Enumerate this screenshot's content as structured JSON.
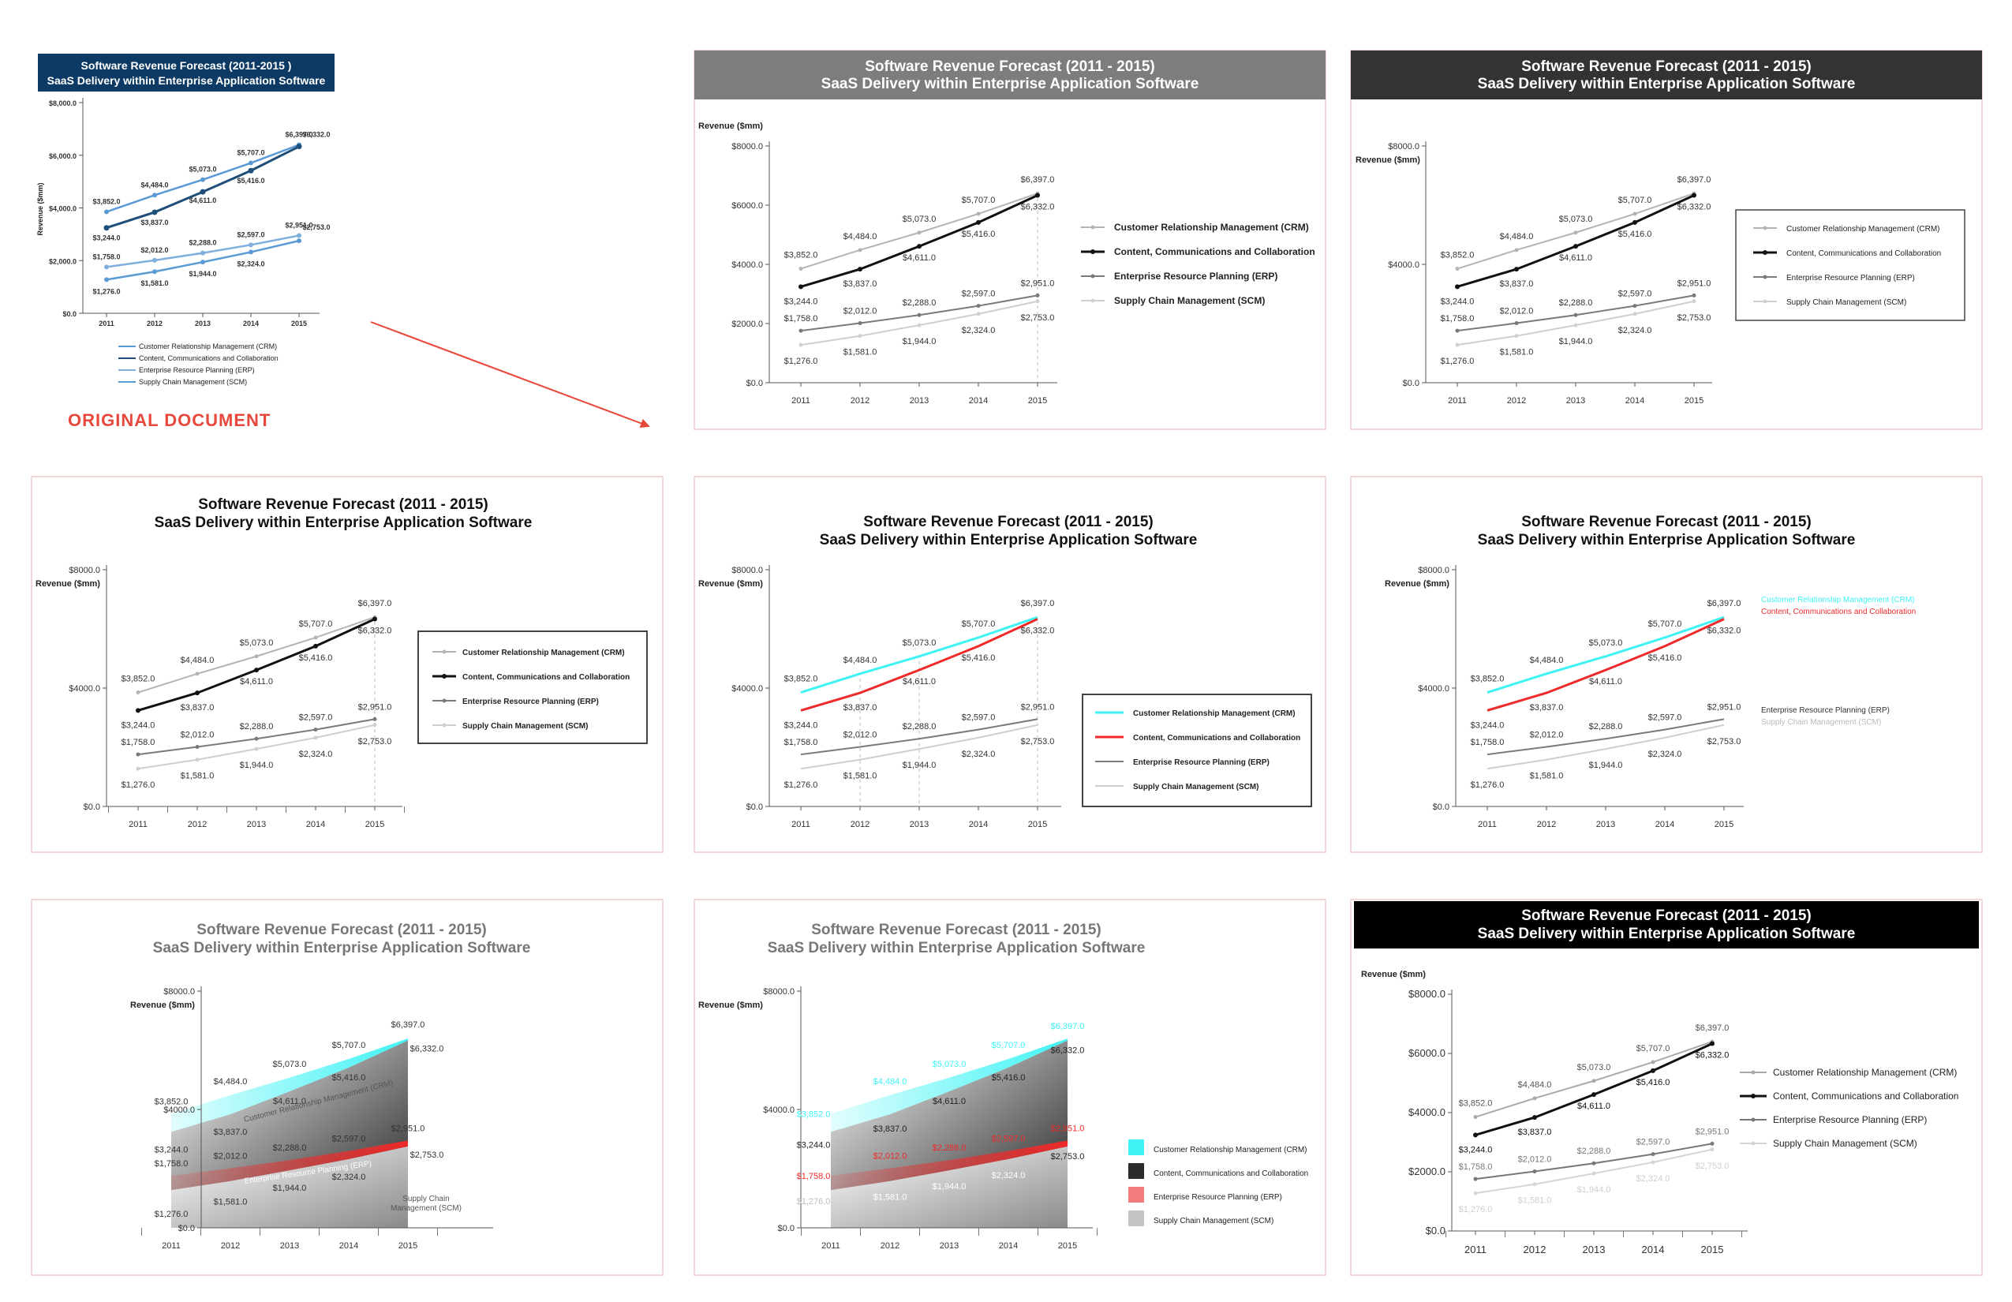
{
  "page": {
    "original_label": "ORIGINAL DOCUMENT",
    "label_color": "#e8473b",
    "arrow_color": "#e8473b"
  },
  "colors": {
    "crm_gray": "#b4b4b4",
    "ccc_black": "#111111",
    "erp_gray": "#7a7a7a",
    "scm_gray": "#cfcfcf",
    "crm_cyan": "#3ff3f5",
    "ccc_red": "#ee2a2a",
    "orig_title_bg": "#0d3a64",
    "orig_line": "#5b9bd5",
    "orig_dark": "#1f4e79",
    "panel_border": "#f3d6d6"
  },
  "chart_data": {
    "type": "line",
    "title": "Software Revenue Forecast (2011 - 2015)",
    "subtitle": "SaaS Delivery within Enterprise Application Software",
    "original_title": "Software Revenue Forecast (2011-2015 )",
    "ylabel": "Revenue ($mm)",
    "x": [
      "2011",
      "2012",
      "2013",
      "2014",
      "2015"
    ],
    "ylim": [
      0,
      8000
    ],
    "yticks_original": [
      "$8,000.0",
      "$6,000.0",
      "$4,000.0",
      "$2,000.0",
      "$0.0"
    ],
    "yticks_full": [
      "$8000.0",
      "$6000.0",
      "$4000.0",
      "$2000.0",
      "$0.0"
    ],
    "yticks_short": [
      "$8000.0",
      "$4000.0",
      "$0.0"
    ],
    "series": [
      {
        "key": "crm",
        "name": "Customer Relationship Management (CRM)",
        "values": [
          3852.0,
          4484.0,
          5073.0,
          5707.0,
          6397.0
        ],
        "labels": [
          "$3,852.0",
          "$4,484.0",
          "$5,073.0",
          "$5,707.0",
          "$6,397.0"
        ]
      },
      {
        "key": "ccc",
        "name": "Content, Communications and Collaboration",
        "values": [
          3244.0,
          3837.0,
          4611.0,
          5416.0,
          6332.0
        ],
        "labels": [
          "$3,244.0",
          "$3,837.0",
          "$4,611.0",
          "$5,416.0",
          "$6,332.0"
        ]
      },
      {
        "key": "erp",
        "name": "Enterprise Resource Planning (ERP)",
        "values": [
          1758.0,
          2012.0,
          2288.0,
          2597.0,
          2951.0
        ],
        "labels": [
          "$1,758.0",
          "$2,012.0",
          "$2,288.0",
          "$2,597.0",
          "$2,951.0"
        ]
      },
      {
        "key": "scm",
        "name": "Supply Chain Management (SCM)",
        "values": [
          1276.0,
          1581.0,
          1944.0,
          2324.0,
          2753.0
        ],
        "labels": [
          "$1,276.0",
          "$1,581.0",
          "$1,944.0",
          "$2,324.0",
          "$2,753.0"
        ]
      }
    ],
    "annotations": {
      "crm_area": "Customer Relationship Management (CRM)",
      "erp_area": "Enterprise Resource Planning (ERP)",
      "ccc_area": [
        "Content,",
        "Communications",
        "and Collaboration"
      ],
      "scm_area": [
        "Supply Chain",
        "Management (SCM)"
      ]
    }
  }
}
